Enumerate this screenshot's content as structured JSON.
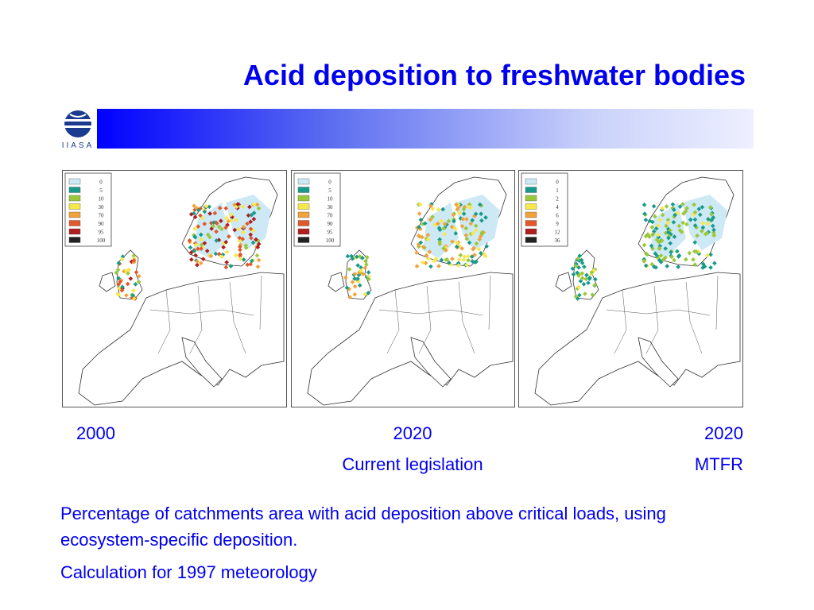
{
  "slide": {
    "title": "Acid deposition to freshwater bodies",
    "logo_text": "IIASA"
  },
  "colors": {
    "title": "#0000ee",
    "band_start": "#0000ff",
    "band_end": "#eef0ff",
    "water": "#cde9f6"
  },
  "maps": [
    {
      "year": "2000",
      "scenario": "",
      "legend": [
        "0",
        "5",
        "10",
        "30",
        "70",
        "90",
        "95",
        "100"
      ],
      "legend_colors": [
        "#cde9f6",
        "#1a9a8a",
        "#9ac83a",
        "#f7e84a",
        "#f2a23a",
        "#e1582a",
        "#b01e1e",
        "#222222"
      ]
    },
    {
      "year": "2020",
      "scenario": "Current legislation",
      "legend": [
        "0",
        "5",
        "10",
        "30",
        "70",
        "90",
        "95",
        "100"
      ],
      "legend_colors": [
        "#cde9f6",
        "#1a9a8a",
        "#9ac83a",
        "#f7e84a",
        "#f2a23a",
        "#e1582a",
        "#b01e1e",
        "#222222"
      ]
    },
    {
      "year": "2020",
      "scenario": "MTFR",
      "legend": [
        "0",
        "1",
        "2",
        "4",
        "6",
        "9",
        "12",
        "36"
      ],
      "legend_colors": [
        "#cde9f6",
        "#1a9a8a",
        "#9ac83a",
        "#f7e84a",
        "#f2a23a",
        "#e1582a",
        "#b01e1e",
        "#222222"
      ]
    }
  ],
  "description": {
    "line1": "Percentage of catchments area with acid deposition above critical loads, using ecosystem-specific deposition.",
    "line2": "Calculation for 1997 meteorology"
  }
}
